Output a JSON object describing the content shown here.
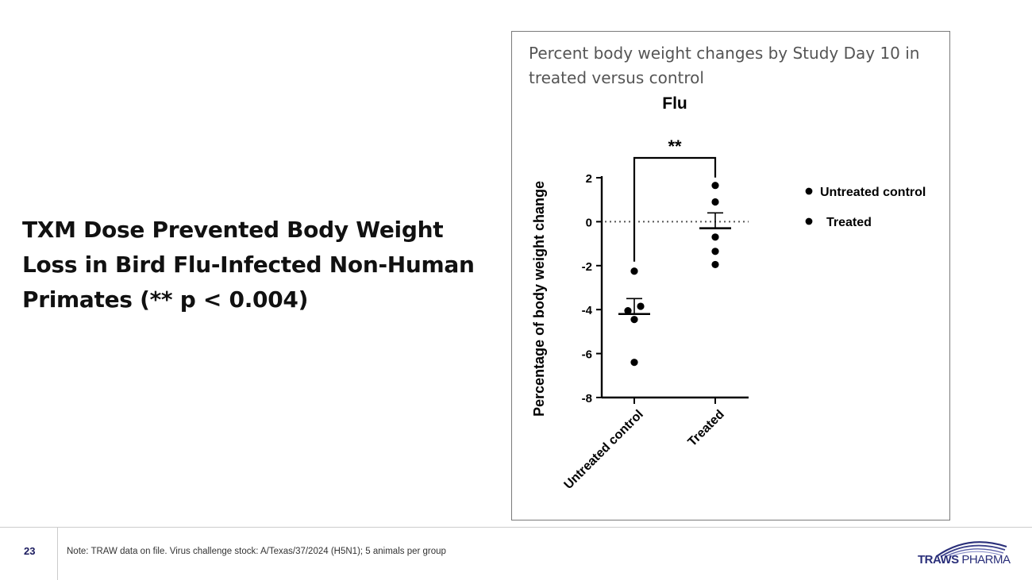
{
  "slide": {
    "headline": "TXM Dose Prevented Body Weight Loss in Bird Flu-Infected Non-Human Primates (** p < 0.004)",
    "number": "23",
    "footnote": "Note: TRAW data on file. Virus challenge stock: A/Texas/37/2024 (H5N1); 5 animals per group",
    "logo": {
      "bold": "TRAWS",
      "rest": " PHARMA",
      "color": "#2a2f7a"
    }
  },
  "chart_data": {
    "type": "scatter",
    "caption": "Percent body weight changes by Study Day 10 in treated versus control",
    "title": "Flu",
    "ylabel": "Percentage of body weight change",
    "xlabel": "",
    "ylim": [
      -8,
      2
    ],
    "yticks": [
      "2",
      "0",
      "-2",
      "-4",
      "-6",
      "-8"
    ],
    "categories": [
      "Untreated control",
      "Treated"
    ],
    "reference_line": 0,
    "significance": "**",
    "legend_position": "right",
    "series": [
      {
        "name": "Untreated control",
        "points": [
          -2.25,
          -4.05,
          -3.85,
          -4.45,
          -6.4
        ],
        "mean": -4.2,
        "sem": 0.7
      },
      {
        "name": "Treated",
        "points": [
          1.65,
          0.9,
          -0.7,
          -1.35,
          -1.95
        ],
        "mean": -0.3,
        "sem": 0.7
      }
    ],
    "colors": {
      "marker": "#000000",
      "reference": "#555555"
    }
  }
}
